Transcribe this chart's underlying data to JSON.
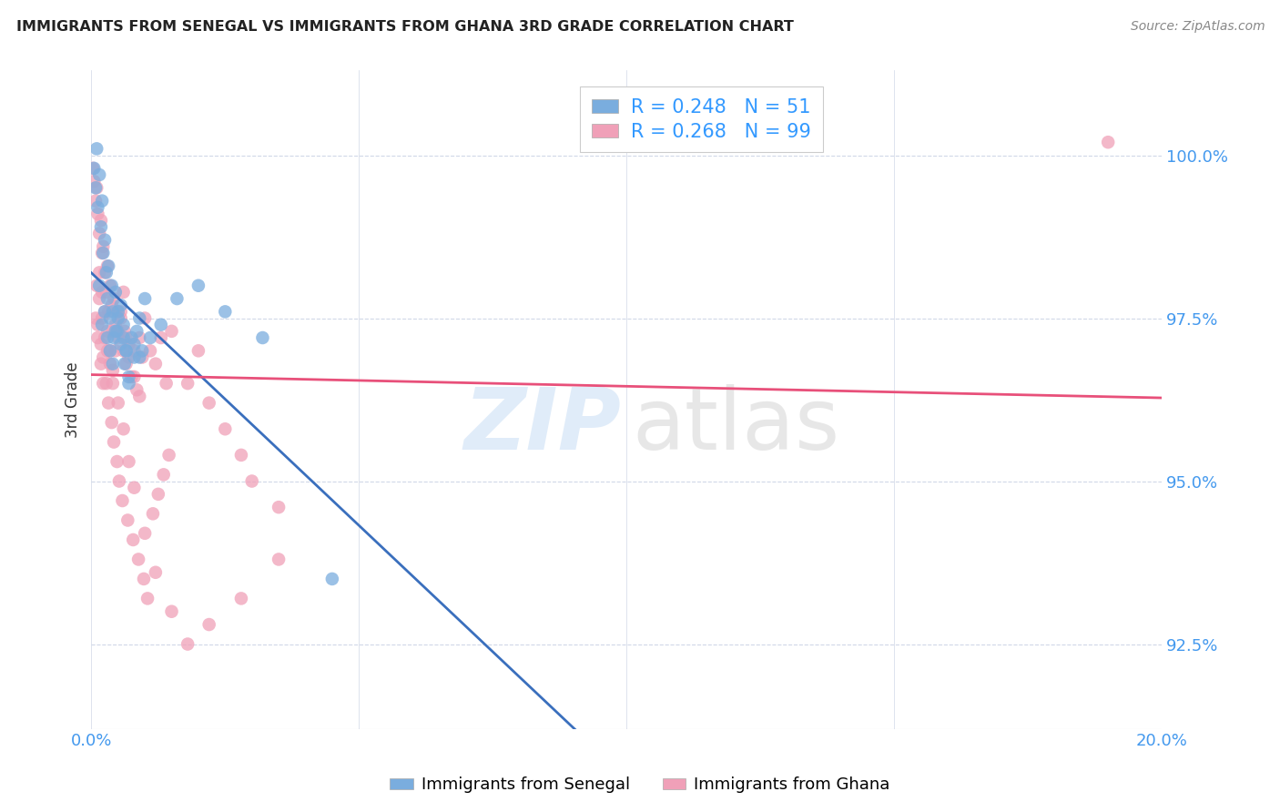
{
  "title": "IMMIGRANTS FROM SENEGAL VS IMMIGRANTS FROM GHANA 3RD GRADE CORRELATION CHART",
  "source": "Source: ZipAtlas.com",
  "ylabel": "3rd Grade",
  "ylabel_tick_vals": [
    92.5,
    95.0,
    97.5,
    100.0
  ],
  "xlim": [
    0.0,
    20.0
  ],
  "ylim": [
    91.2,
    101.3
  ],
  "legend_senegal": "R = 0.248   N = 51",
  "legend_ghana": "R = 0.268   N = 99",
  "senegal_color": "#7aadde",
  "ghana_color": "#f0a0b8",
  "regression_senegal_color": "#3a6fbd",
  "regression_ghana_color": "#e8507a",
  "legend_label_senegal": "Immigrants from Senegal",
  "legend_label_ghana": "Immigrants from Ghana",
  "senegal_x": [
    0.05,
    0.08,
    0.1,
    0.12,
    0.15,
    0.18,
    0.2,
    0.22,
    0.25,
    0.28,
    0.3,
    0.32,
    0.35,
    0.38,
    0.4,
    0.42,
    0.45,
    0.48,
    0.5,
    0.55,
    0.6,
    0.62,
    0.65,
    0.7,
    0.75,
    0.8,
    0.85,
    0.9,
    0.95,
    1.0,
    0.15,
    0.2,
    0.25,
    0.3,
    0.35,
    0.4,
    0.45,
    0.5,
    0.55,
    0.6,
    0.65,
    0.7,
    0.8,
    0.9,
    1.1,
    1.3,
    1.6,
    2.0,
    2.5,
    3.2,
    4.5
  ],
  "senegal_y": [
    99.8,
    99.5,
    100.1,
    99.2,
    99.7,
    98.9,
    99.3,
    98.5,
    98.7,
    98.2,
    97.8,
    98.3,
    97.5,
    98.0,
    97.6,
    97.2,
    97.9,
    97.3,
    97.6,
    97.1,
    97.4,
    96.8,
    97.0,
    96.5,
    97.2,
    96.9,
    97.3,
    97.5,
    97.0,
    97.8,
    98.0,
    97.4,
    97.6,
    97.2,
    97.0,
    96.8,
    97.3,
    97.5,
    97.7,
    97.2,
    97.0,
    96.6,
    97.1,
    96.9,
    97.2,
    97.4,
    97.8,
    98.0,
    97.6,
    97.2,
    93.5
  ],
  "ghana_x": [
    0.03,
    0.05,
    0.08,
    0.1,
    0.12,
    0.15,
    0.18,
    0.2,
    0.22,
    0.25,
    0.28,
    0.3,
    0.32,
    0.35,
    0.38,
    0.4,
    0.42,
    0.45,
    0.48,
    0.5,
    0.55,
    0.6,
    0.62,
    0.65,
    0.7,
    0.75,
    0.8,
    0.85,
    0.9,
    0.95,
    1.0,
    1.1,
    1.2,
    1.3,
    1.4,
    1.5,
    0.15,
    0.2,
    0.25,
    0.3,
    0.35,
    0.4,
    0.45,
    0.5,
    0.55,
    0.6,
    0.65,
    0.7,
    0.8,
    0.9,
    0.12,
    0.18,
    0.22,
    0.28,
    0.32,
    0.38,
    0.42,
    0.48,
    0.52,
    0.58,
    0.68,
    0.78,
    0.88,
    0.98,
    1.05,
    1.15,
    1.25,
    1.35,
    1.45,
    1.8,
    2.0,
    2.2,
    2.5,
    2.8,
    3.0,
    3.5,
    0.1,
    0.15,
    0.2,
    0.25,
    0.3,
    0.35,
    0.4,
    0.5,
    0.6,
    0.7,
    0.8,
    1.0,
    1.2,
    1.5,
    1.8,
    2.2,
    2.8,
    3.5,
    0.08,
    0.12,
    0.18,
    0.22,
    19.0
  ],
  "ghana_y": [
    99.8,
    99.6,
    99.3,
    99.5,
    99.1,
    98.8,
    99.0,
    98.5,
    98.6,
    98.2,
    97.9,
    98.3,
    97.6,
    98.0,
    97.7,
    97.3,
    97.8,
    97.4,
    97.6,
    97.2,
    97.5,
    97.0,
    97.3,
    96.8,
    97.1,
    96.6,
    97.0,
    96.4,
    97.2,
    96.9,
    97.5,
    97.0,
    96.8,
    97.2,
    96.5,
    97.3,
    97.8,
    97.5,
    97.2,
    97.0,
    96.8,
    96.5,
    97.0,
    97.3,
    97.6,
    97.9,
    97.2,
    96.9,
    96.6,
    96.3,
    97.4,
    97.1,
    96.9,
    96.5,
    96.2,
    95.9,
    95.6,
    95.3,
    95.0,
    94.7,
    94.4,
    94.1,
    93.8,
    93.5,
    93.2,
    94.5,
    94.8,
    95.1,
    95.4,
    96.5,
    97.0,
    96.2,
    95.8,
    95.4,
    95.0,
    94.6,
    98.0,
    98.2,
    97.9,
    97.6,
    97.3,
    97.0,
    96.7,
    96.2,
    95.8,
    95.3,
    94.9,
    94.2,
    93.6,
    93.0,
    92.5,
    92.8,
    93.2,
    93.8,
    97.5,
    97.2,
    96.8,
    96.5,
    100.2
  ]
}
